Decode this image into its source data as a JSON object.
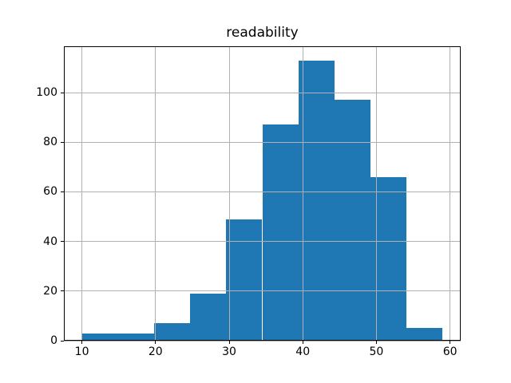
{
  "figure": {
    "background": "#ffffff"
  },
  "chart_data": {
    "type": "bar",
    "subtype": "histogram",
    "title": "readability",
    "xlabel": "",
    "ylabel": "",
    "bin_edges": [
      10.0,
      14.9,
      19.8,
      24.7,
      29.6,
      34.5,
      39.4,
      44.3,
      49.2,
      54.1,
      59.0
    ],
    "values": [
      3,
      3,
      7,
      19,
      49,
      87,
      113,
      97,
      66,
      5
    ],
    "xticks": [
      10,
      20,
      30,
      40,
      50,
      60
    ],
    "yticks": [
      0,
      20,
      40,
      60,
      80,
      100
    ],
    "xlim": [
      7.55,
      61.45
    ],
    "ylim": [
      0,
      118.65
    ],
    "grid": true,
    "grid_over_bars": true,
    "legend": false,
    "bar_color": "#1f77b4",
    "grid_color": "#b0b0b0",
    "axis_color": "#000000",
    "text_color": "#000000"
  }
}
